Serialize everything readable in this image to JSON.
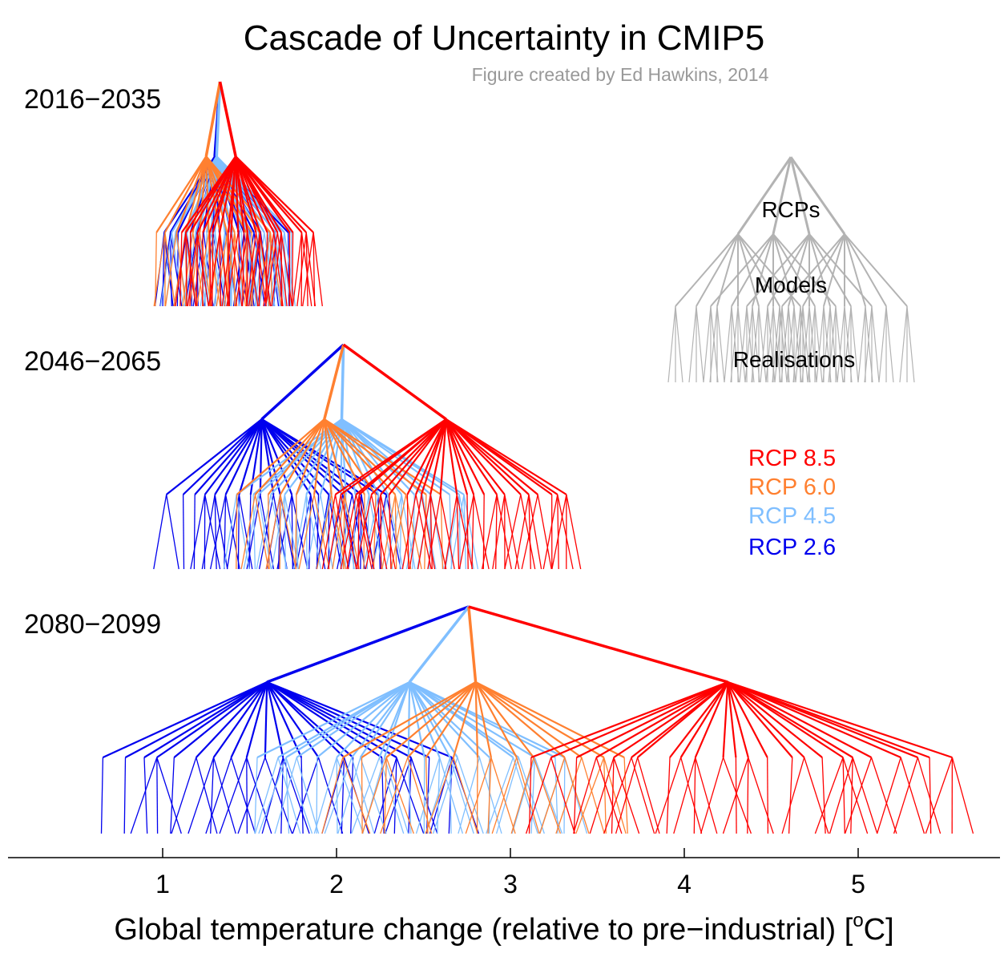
{
  "chart_data": {
    "type": "tree",
    "title": "Cascade of Uncertainty in CMIP5",
    "credit": "Figure created by Ed Hawkins, 2014",
    "xlabel": "Global temperature change (relative to pre−industrial)  [",
    "xlabel_sup": "o",
    "xlabel_unit": "C]",
    "xlim": [
      0.1,
      5.8
    ],
    "xticks": [
      1,
      2,
      3,
      4,
      5
    ],
    "periods": [
      {
        "label": "2016−2035",
        "ensemble_mean": 1.33,
        "rcps": [
          {
            "name": "RCP 2.6",
            "mean": 1.3,
            "model_min": 1.02,
            "model_max": 1.72,
            "models": 20
          },
          {
            "name": "RCP 4.5",
            "mean": 1.31,
            "model_min": 1.05,
            "model_max": 1.74,
            "models": 22
          },
          {
            "name": "RCP 6.0",
            "mean": 1.25,
            "model_min": 0.97,
            "model_max": 1.62,
            "models": 14
          },
          {
            "name": "RCP 8.5",
            "mean": 1.42,
            "model_min": 1.1,
            "model_max": 1.86,
            "models": 24
          }
        ]
      },
      {
        "label": "2046−2065",
        "ensemble_mean": 2.04,
        "rcps": [
          {
            "name": "RCP 2.6",
            "mean": 1.57,
            "model_min": 1.03,
            "model_max": 2.3,
            "models": 20
          },
          {
            "name": "RCP 4.5",
            "mean": 2.03,
            "model_min": 1.45,
            "model_max": 2.75,
            "models": 22
          },
          {
            "name": "RCP 6.0",
            "mean": 1.93,
            "model_min": 1.42,
            "model_max": 2.6,
            "models": 14
          },
          {
            "name": "RCP 8.5",
            "mean": 2.63,
            "model_min": 1.97,
            "model_max": 3.33,
            "models": 24
          }
        ]
      },
      {
        "label": "2080−2099",
        "ensemble_mean": 2.76,
        "rcps": [
          {
            "name": "RCP 2.6",
            "mean": 1.6,
            "model_min": 0.68,
            "model_max": 2.65,
            "models": 20
          },
          {
            "name": "RCP 4.5",
            "mean": 2.42,
            "model_min": 1.55,
            "model_max": 3.32,
            "models": 22
          },
          {
            "name": "RCP 6.0",
            "mean": 2.8,
            "model_min": 2.05,
            "model_max": 3.65,
            "models": 14
          },
          {
            "name": "RCP 8.5",
            "mean": 4.25,
            "model_min": 3.15,
            "model_max": 5.52,
            "models": 24
          }
        ]
      }
    ],
    "legend": [
      {
        "label": "RCP 8.5",
        "color": "#ff0000"
      },
      {
        "label": "RCP 6.0",
        "color": "#ff8030"
      },
      {
        "label": "RCP 4.5",
        "color": "#80bfff"
      },
      {
        "label": "RCP 2.6",
        "color": "#0000ee"
      }
    ],
    "schematic": {
      "labels": [
        "RCPs",
        "Models",
        "Realisations"
      ],
      "color": "#b3b3b3"
    }
  }
}
